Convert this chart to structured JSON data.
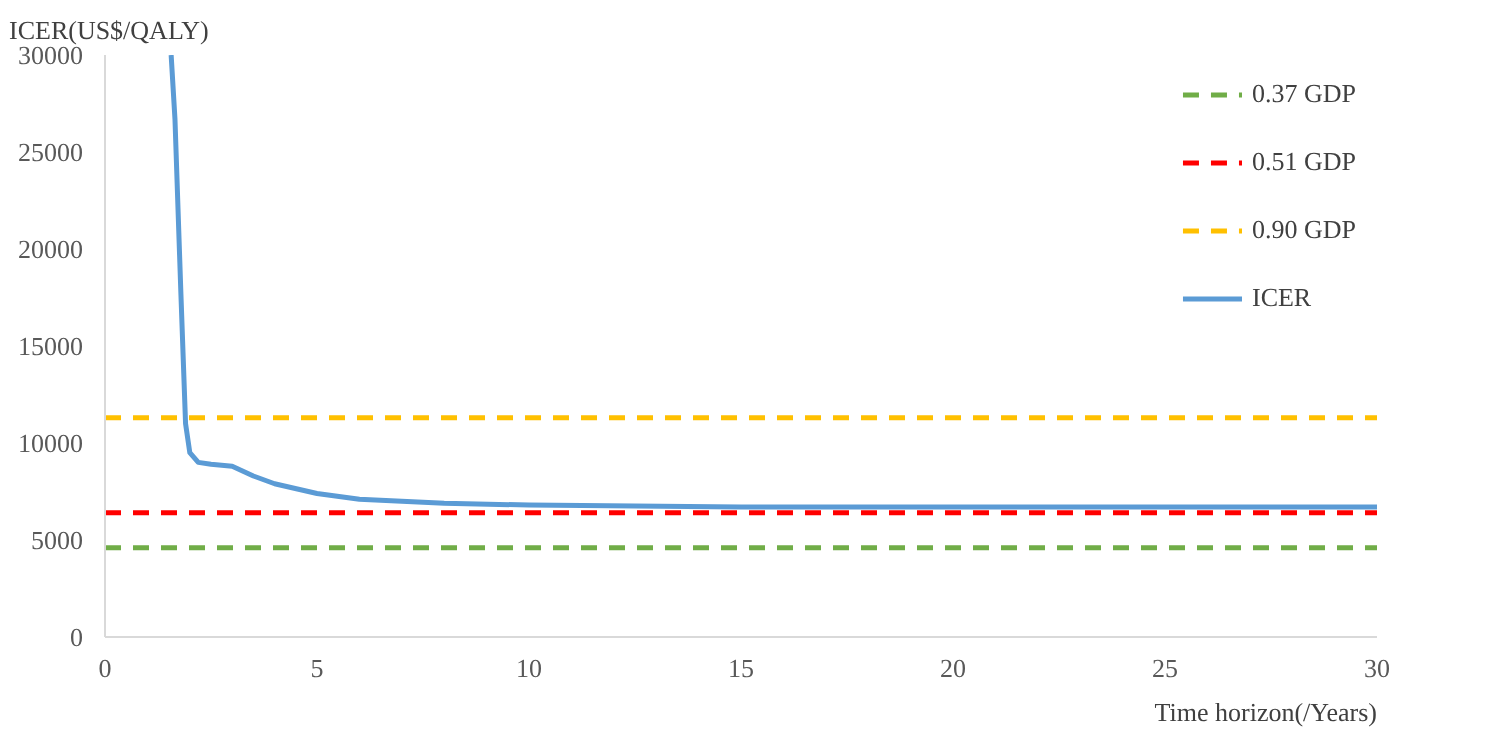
{
  "chart_data": {
    "type": "line",
    "ylabel": "ICER(US$/QALY)",
    "xlabel": "Time horizon(/Years)",
    "xlim": [
      0,
      30
    ],
    "ylim": [
      0,
      30000
    ],
    "xticks": [
      0,
      5,
      10,
      15,
      20,
      25,
      30
    ],
    "yticks": [
      0,
      5000,
      10000,
      15000,
      20000,
      25000,
      30000
    ],
    "grid": false,
    "legend": "top right",
    "line_style": "solid",
    "marker": "none",
    "ref_lines": [
      {
        "axis": "y",
        "value": 4600,
        "label": "0.37 GDP",
        "color": "#70ad47",
        "line_style": "dashed"
      },
      {
        "axis": "y",
        "value": 6400,
        "label": "0.51 GDP",
        "color": "#ff0000",
        "line_style": "dashed"
      },
      {
        "axis": "y",
        "value": 11300,
        "label": "0.90 GDP",
        "color": "#ffc000",
        "line_style": "dashed"
      }
    ],
    "series": [
      {
        "name": "ICER",
        "color": "#5b9bd5",
        "x": [
          1.56,
          1.65,
          1.79,
          1.9,
          2.0,
          2.2,
          2.5,
          3.0,
          3.5,
          4,
          5,
          6,
          7,
          8,
          10,
          15,
          20,
          25,
          30
        ],
        "values": [
          30000,
          26700,
          17700,
          11000,
          9500,
          9000,
          8900,
          8800,
          8300,
          7900,
          7400,
          7100,
          7000,
          6900,
          6800,
          6700,
          6700,
          6700,
          6700
        ]
      }
    ]
  }
}
